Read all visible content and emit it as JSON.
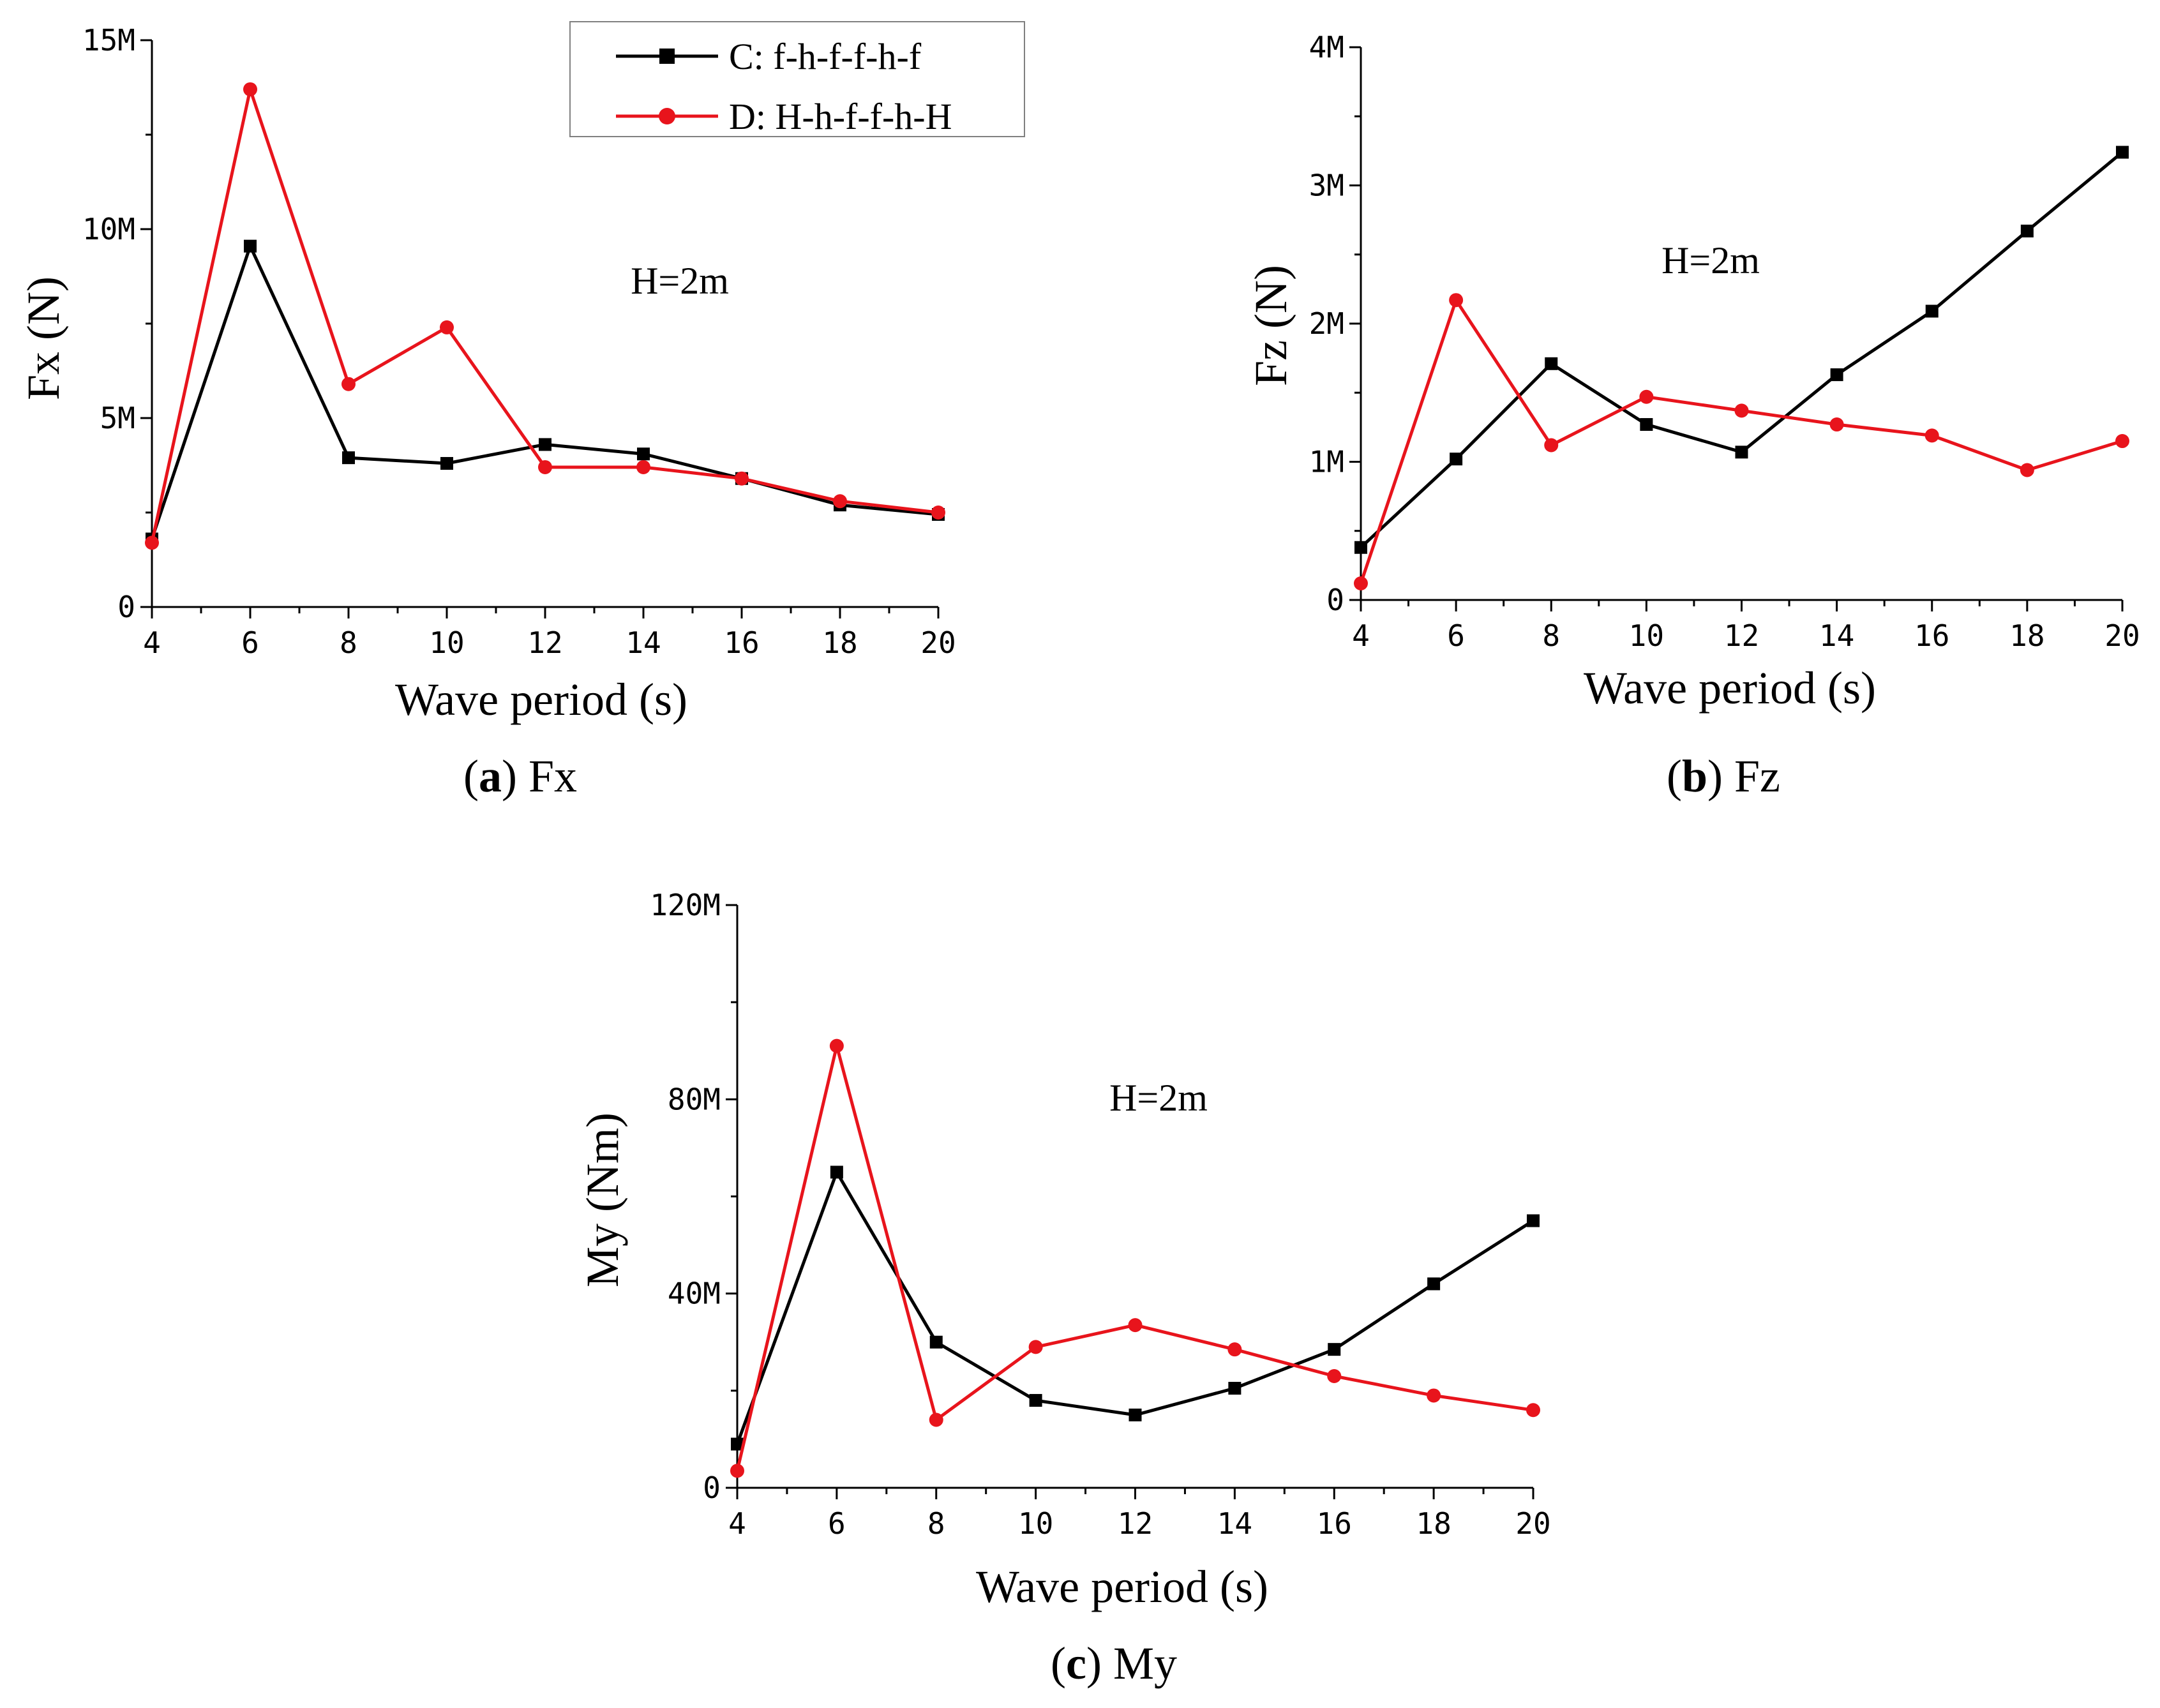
{
  "legend": [
    {
      "name": "C: f-h-f-f-h-f",
      "color": "#000000",
      "marker": "square"
    },
    {
      "name": "D: H-h-f-f-h-H",
      "color": "#e8141c",
      "marker": "circle"
    }
  ],
  "chart_data": [
    {
      "type": "line",
      "id": "a",
      "caption_letter": "a",
      "caption_text": "Fx",
      "title": "",
      "xlabel": "Wave period (s)",
      "ylabel": "Fx (N)",
      "annotation": "H=2m",
      "x": [
        4,
        6,
        8,
        10,
        12,
        14,
        16,
        18,
        20
      ],
      "xlim": [
        4,
        20
      ],
      "xticks": [
        4,
        6,
        8,
        10,
        12,
        14,
        16,
        18,
        20
      ],
      "xtick_labels": [
        "4",
        "6",
        "8",
        "10",
        "12",
        "14",
        "16",
        "18",
        "20"
      ],
      "ylim": [
        0,
        15000000
      ],
      "yticks": [
        0,
        5000000,
        10000000,
        15000000
      ],
      "ytick_labels": [
        "0",
        "5M",
        "10M",
        "15M"
      ],
      "series": [
        {
          "name": "C: f-h-f-f-h-f",
          "values": [
            1800000,
            9550000,
            3950000,
            3800000,
            4300000,
            4050000,
            3400000,
            2700000,
            2450000
          ]
        },
        {
          "name": "D: H-h-f-f-h-H",
          "values": [
            1700000,
            13700000,
            5900000,
            7400000,
            3700000,
            3700000,
            3400000,
            2800000,
            2500000
          ]
        }
      ]
    },
    {
      "type": "line",
      "id": "b",
      "caption_letter": "b",
      "caption_text": "Fz",
      "title": "",
      "xlabel": "Wave period (s)",
      "ylabel": "Fz (N)",
      "annotation": "H=2m",
      "x": [
        4,
        6,
        8,
        10,
        12,
        14,
        16,
        18,
        20
      ],
      "xlim": [
        4,
        20
      ],
      "xticks": [
        4,
        6,
        8,
        10,
        12,
        14,
        16,
        18,
        20
      ],
      "xtick_labels": [
        "4",
        "6",
        "8",
        "10",
        "12",
        "14",
        "16",
        "18",
        "20"
      ],
      "ylim": [
        0,
        4000000
      ],
      "yticks": [
        0,
        1000000,
        2000000,
        3000000,
        4000000
      ],
      "ytick_labels": [
        "0",
        "1M",
        "2M",
        "3M",
        "4M"
      ],
      "series": [
        {
          "name": "C: f-h-f-f-h-f",
          "values": [
            380000,
            1020000,
            1710000,
            1270000,
            1070000,
            1630000,
            2090000,
            2670000,
            3240000
          ]
        },
        {
          "name": "D: H-h-f-f-h-H",
          "values": [
            120000,
            2170000,
            1120000,
            1470000,
            1370000,
            1270000,
            1190000,
            940000,
            1150000
          ]
        }
      ]
    },
    {
      "type": "line",
      "id": "c",
      "caption_letter": "c",
      "caption_text": "My",
      "title": "",
      "xlabel": "Wave period (s)",
      "ylabel": "My (Nm)",
      "annotation": "H=2m",
      "x": [
        4,
        6,
        8,
        10,
        12,
        14,
        16,
        18,
        20
      ],
      "xlim": [
        4,
        20
      ],
      "xticks": [
        4,
        6,
        8,
        10,
        12,
        14,
        16,
        18,
        20
      ],
      "xtick_labels": [
        "4",
        "6",
        "8",
        "10",
        "12",
        "14",
        "16",
        "18",
        "20"
      ],
      "ylim": [
        0,
        120000000
      ],
      "yticks": [
        0,
        40000000,
        80000000,
        120000000
      ],
      "ytick_labels": [
        "0",
        "40M",
        "80M",
        "120M"
      ],
      "series": [
        {
          "name": "C: f-h-f-f-h-f",
          "values": [
            9000000,
            65000000,
            30000000,
            18000000,
            15000000,
            20500000,
            28500000,
            42000000,
            55000000
          ]
        },
        {
          "name": "D: H-h-f-f-h-H",
          "values": [
            3500000,
            91000000,
            14000000,
            29000000,
            33500000,
            28500000,
            23000000,
            19000000,
            16000000
          ]
        }
      ]
    }
  ]
}
